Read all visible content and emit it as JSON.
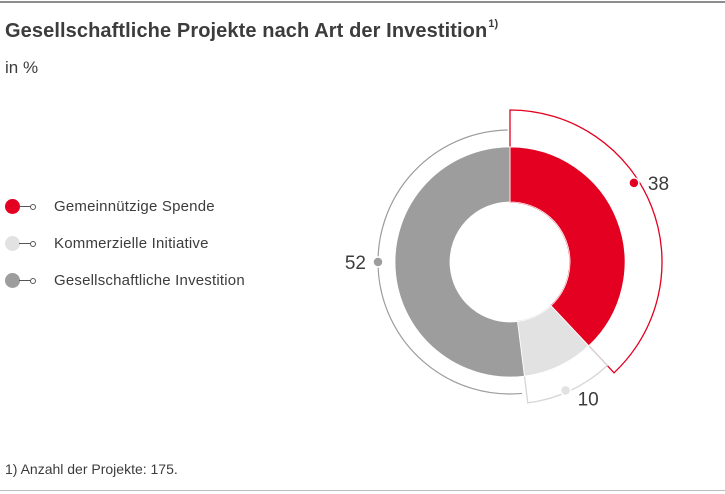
{
  "title": "Gesellschaftliche Projekte nach Art der Investition",
  "title_footnote_mark": "1)",
  "subtitle": "in %",
  "footnote": "1) Anzahl der Projekte: 175.",
  "chart_data": {
    "type": "pie",
    "variant": "donut",
    "legend_placement": "left",
    "categories": [
      "Gemeinnützige Spende",
      "Kommerzielle Initiative",
      "Gesellschaftliche Investition"
    ],
    "values": [
      38,
      10,
      52
    ],
    "value_labels": [
      "38",
      "10",
      "52"
    ],
    "colors": [
      "#e30020",
      "#e2e2e2",
      "#9d9d9d"
    ],
    "legend": [
      {
        "label": "Gemeinnützige Spende",
        "color": "#e30020"
      },
      {
        "label": "Kommerzielle Initiative",
        "color": "#e2e2e2"
      },
      {
        "label": "Gesellschaftliche Investition",
        "color": "#9d9d9d"
      }
    ]
  }
}
